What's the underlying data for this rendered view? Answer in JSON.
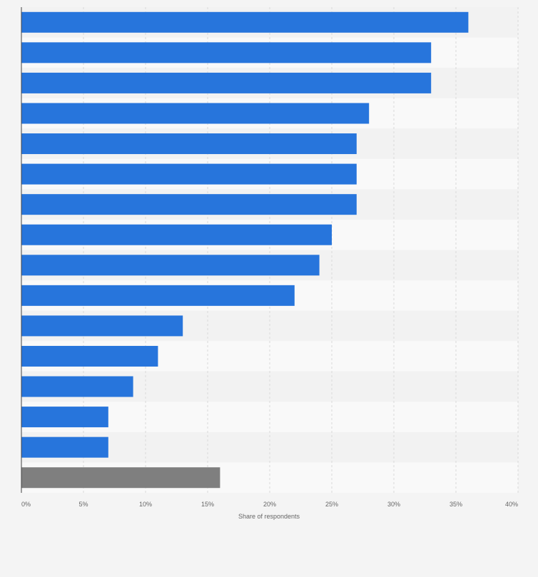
{
  "chart_data": {
    "type": "bar",
    "orientation": "horizontal",
    "xlabel": "Share of respondents",
    "ylabel": "",
    "xlim": [
      0,
      40
    ],
    "x_ticks": [
      0,
      5,
      10,
      15,
      20,
      25,
      30,
      35,
      40
    ],
    "x_tick_labels": [
      "0%",
      "5%",
      "10%",
      "15%",
      "20%",
      "25%",
      "30%",
      "35%",
      "40%"
    ],
    "grid": "vertical dashed",
    "legend": "none",
    "values": [
      36,
      33,
      33,
      28,
      27,
      27,
      27,
      25,
      24,
      22,
      13,
      11,
      9,
      7,
      7,
      16
    ],
    "highlight": [
      false,
      false,
      false,
      false,
      false,
      false,
      false,
      false,
      false,
      false,
      false,
      false,
      false,
      false,
      false,
      true
    ]
  },
  "colors": {
    "bar": "#2775dc",
    "bar_highlight": "#7f7f7f",
    "background": "#f4f4f4",
    "plot_row_light": "#f9f9f9",
    "plot_row_dark": "#f2f2f2",
    "grid": "#d9d9d9",
    "axis": "#444444"
  }
}
